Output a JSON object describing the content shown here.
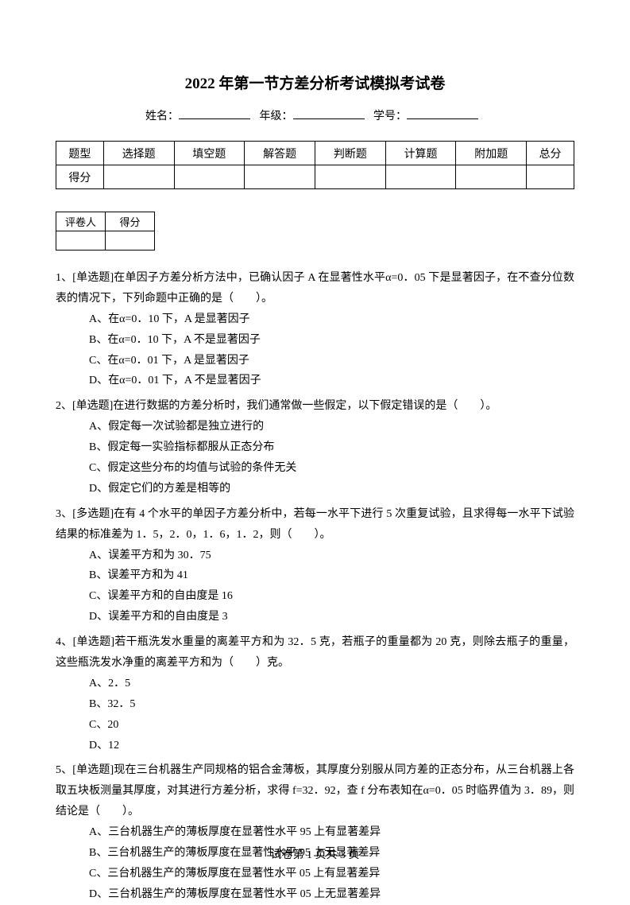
{
  "title": "2022 年第一节方差分析考试模拟考试卷",
  "info": {
    "name_label": "姓名：",
    "grade_label": "年级：",
    "number_label": "学号："
  },
  "score_table": {
    "headers": [
      "题型",
      "选择题",
      "填空题",
      "解答题",
      "判断题",
      "计算题",
      "附加题",
      "总分"
    ],
    "row2_label": "得分"
  },
  "grader_table": {
    "col1": "评卷人",
    "col2": "得分"
  },
  "questions": [
    {
      "num": "1、",
      "type": "[单选题]",
      "text": "在单因子方差分析方法中，已确认因子 A 在显著性水平α=0．05 下是显著因子，在不查分位数表的情况下，下列命题中正确的是（　　）。",
      "options": [
        "A、在α=0．10 下，A 是显著因子",
        "B、在α=0．10 下，A 不是显著因子",
        "C、在α=0．01 下，A 是显著因子",
        "D、在α=0．01 下，A 不是显著因子"
      ]
    },
    {
      "num": "2、",
      "type": "[单选题]",
      "text": "在进行数据的方差分析时，我们通常做一些假定，以下假定错误的是（　　）。",
      "options": [
        "A、假定每一次试验都是独立进行的",
        "B、假定每一实验指标都服从正态分布",
        "C、假定这些分布的均值与试验的条件无关",
        "D、假定它们的方差是相等的"
      ]
    },
    {
      "num": "3、",
      "type": "[多选题]",
      "text": "在有 4 个水平的单因子方差分析中，若每一水平下进行 5 次重复试验，且求得每一水平下试验结果的标准差为 1．5，2．0，1．6，1．2，则（　　）。",
      "options": [
        "A、误差平方和为 30．75",
        "B、误差平方和为 41",
        "C、误差平方和的自由度是 16",
        "D、误差平方和的自由度是 3"
      ]
    },
    {
      "num": "4、",
      "type": "[单选题]",
      "text": "若干瓶洗发水重量的离差平方和为 32．5 克，若瓶子的重量都为 20 克，则除去瓶子的重量，这些瓶洗发水净重的离差平方和为（　　）克。",
      "options": [
        "A、2．5",
        "B、32．5",
        "C、20",
        "D、12"
      ]
    },
    {
      "num": "5、",
      "type": "[单选题]",
      "text": "现在三台机器生产同规格的铝合金薄板，其厚度分别服从同方差的正态分布，从三台机器上各取五块板测量其厚度，对其进行方差分析，求得 f=32．92，查 f 分布表知在α=0．05 时临界值为 3．89，则结论是（　　）。",
      "options": [
        "A、三台机器生产的薄板厚度在显著性水平 95 上有显著差异",
        "B、三台机器生产的薄板厚度在显著性水平 95 上无显著差异",
        "C、三台机器生产的薄板厚度在显著性水平 05 上有显著差异",
        "D、三台机器生产的薄板厚度在显著性水平 05 上无显著差异"
      ]
    }
  ],
  "footer": "试卷第 1 页共 3 页"
}
